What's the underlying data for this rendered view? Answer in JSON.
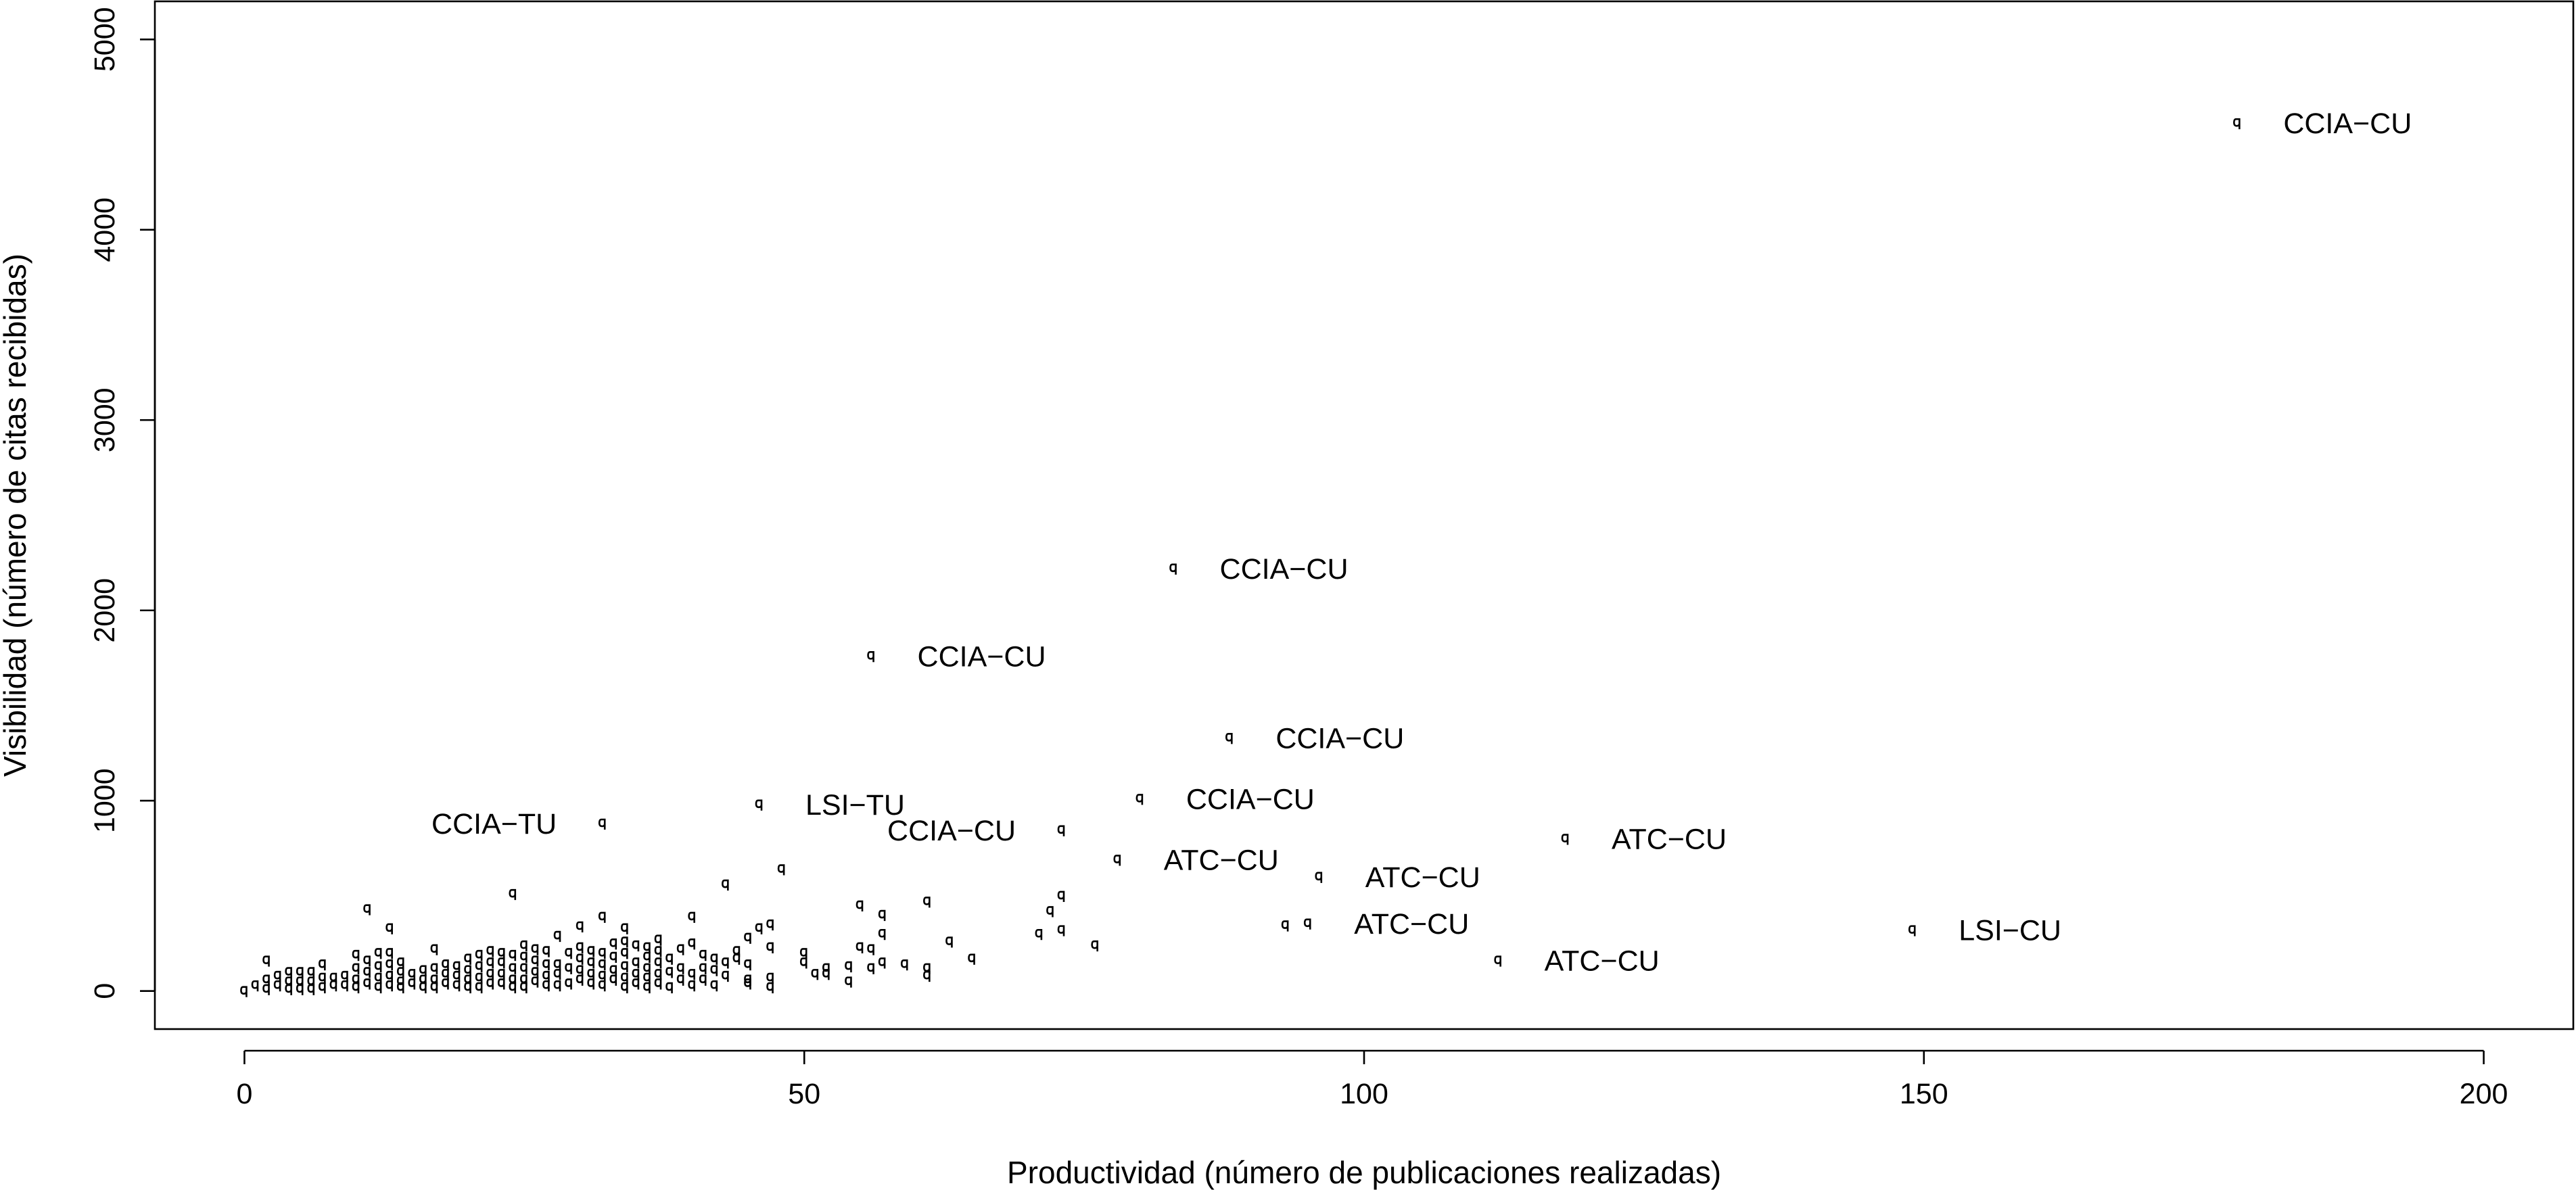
{
  "chart_data": {
    "type": "scatter",
    "xlabel": "Productividad (número de publicaciones realizadas)",
    "ylabel": "Visibilidad (número de citas recibidas)",
    "xlim": [
      -8,
      208
    ],
    "ylim": [
      -200,
      5200
    ],
    "x_ticks": [
      0,
      50,
      100,
      150,
      200
    ],
    "y_ticks": [
      0,
      1000,
      2000,
      3000,
      4000,
      5000
    ],
    "x_tick_labels": [
      "0",
      "50",
      "100",
      "150",
      "200"
    ],
    "y_tick_labels": [
      "0",
      "1000",
      "2000",
      "3000",
      "4000",
      "5000"
    ],
    "grid": false,
    "legend": "none",
    "marker": "q",
    "labeled_points": [
      {
        "x": 178,
        "y": 4560,
        "label": "CCIA−CU",
        "label_side": "right"
      },
      {
        "x": 83,
        "y": 2220,
        "label": "CCIA−CU",
        "label_side": "right"
      },
      {
        "x": 56,
        "y": 1760,
        "label": "CCIA−CU",
        "label_side": "right"
      },
      {
        "x": 88,
        "y": 1330,
        "label": "CCIA−CU",
        "label_side": "right"
      },
      {
        "x": 80,
        "y": 1010,
        "label": "CCIA−CU",
        "label_side": "right"
      },
      {
        "x": 73,
        "y": 845,
        "label": "CCIA−CU",
        "label_side": "left"
      },
      {
        "x": 32,
        "y": 880,
        "label": "CCIA−TU",
        "label_side": "left"
      },
      {
        "x": 46,
        "y": 980,
        "label": "LSI−TU",
        "label_side": "right"
      },
      {
        "x": 78,
        "y": 690,
        "label": "ATC−CU",
        "label_side": "right"
      },
      {
        "x": 96,
        "y": 600,
        "label": "ATC−CU",
        "label_side": "right"
      },
      {
        "x": 118,
        "y": 800,
        "label": "ATC−CU",
        "label_side": "right"
      },
      {
        "x": 95,
        "y": 355,
        "label": "ATC−CU",
        "label_side": "right"
      },
      {
        "x": 112,
        "y": 160,
        "label": "ATC−CU",
        "label_side": "right"
      },
      {
        "x": 149,
        "y": 320,
        "label": "LSI−CU",
        "label_side": "right"
      }
    ],
    "points": [
      [
        93,
        345
      ],
      [
        71,
        300
      ],
      [
        72,
        420
      ],
      [
        73,
        500
      ],
      [
        73,
        320
      ],
      [
        76,
        240
      ],
      [
        61,
        470
      ],
      [
        63,
        260
      ],
      [
        65,
        170
      ],
      [
        61,
        120
      ],
      [
        61,
        80
      ],
      [
        59,
        140
      ],
      [
        57,
        300
      ],
      [
        57,
        400
      ],
      [
        55,
        450
      ],
      [
        56,
        220
      ],
      [
        56,
        120
      ],
      [
        57,
        150
      ],
      [
        55,
        230
      ],
      [
        54,
        50
      ],
      [
        54,
        130
      ],
      [
        52,
        90
      ],
      [
        52,
        120
      ],
      [
        50,
        150
      ],
      [
        50,
        200
      ],
      [
        51,
        90
      ],
      [
        48,
        640
      ],
      [
        47,
        350
      ],
      [
        47,
        230
      ],
      [
        47,
        70
      ],
      [
        47,
        20
      ],
      [
        46,
        330
      ],
      [
        45,
        280
      ],
      [
        45,
        140
      ],
      [
        45,
        60
      ],
      [
        45,
        40
      ],
      [
        44,
        210
      ],
      [
        44,
        170
      ],
      [
        43,
        560
      ],
      [
        43,
        150
      ],
      [
        43,
        80
      ],
      [
        42,
        170
      ],
      [
        42,
        110
      ],
      [
        42,
        30
      ],
      [
        41,
        190
      ],
      [
        41,
        120
      ],
      [
        41,
        60
      ],
      [
        40,
        390
      ],
      [
        40,
        250
      ],
      [
        40,
        90
      ],
      [
        40,
        30
      ],
      [
        39,
        220
      ],
      [
        39,
        120
      ],
      [
        39,
        60
      ],
      [
        38,
        170
      ],
      [
        38,
        100
      ],
      [
        38,
        20
      ],
      [
        37,
        270
      ],
      [
        37,
        210
      ],
      [
        37,
        150
      ],
      [
        37,
        90
      ],
      [
        37,
        40
      ],
      [
        36,
        230
      ],
      [
        36,
        180
      ],
      [
        36,
        120
      ],
      [
        36,
        70
      ],
      [
        36,
        20
      ],
      [
        35,
        240
      ],
      [
        35,
        150
      ],
      [
        35,
        90
      ],
      [
        35,
        40
      ],
      [
        34,
        330
      ],
      [
        34,
        260
      ],
      [
        34,
        200
      ],
      [
        34,
        130
      ],
      [
        34,
        70
      ],
      [
        34,
        20
      ],
      [
        33,
        250
      ],
      [
        33,
        180
      ],
      [
        33,
        110
      ],
      [
        33,
        60
      ],
      [
        32,
        390
      ],
      [
        32,
        200
      ],
      [
        32,
        140
      ],
      [
        32,
        80
      ],
      [
        32,
        30
      ],
      [
        31,
        210
      ],
      [
        31,
        150
      ],
      [
        31,
        90
      ],
      [
        31,
        40
      ],
      [
        30,
        340
      ],
      [
        30,
        230
      ],
      [
        30,
        170
      ],
      [
        30,
        110
      ],
      [
        30,
        60
      ],
      [
        29,
        200
      ],
      [
        29,
        120
      ],
      [
        29,
        40
      ],
      [
        28,
        290
      ],
      [
        28,
        140
      ],
      [
        28,
        90
      ],
      [
        28,
        30
      ],
      [
        27,
        210
      ],
      [
        27,
        140
      ],
      [
        27,
        80
      ],
      [
        27,
        30
      ],
      [
        26,
        220
      ],
      [
        26,
        160
      ],
      [
        26,
        100
      ],
      [
        26,
        50
      ],
      [
        25,
        240
      ],
      [
        25,
        180
      ],
      [
        25,
        120
      ],
      [
        25,
        60
      ],
      [
        25,
        20
      ],
      [
        24,
        510
      ],
      [
        24,
        190
      ],
      [
        24,
        120
      ],
      [
        24,
        60
      ],
      [
        24,
        20
      ],
      [
        23,
        200
      ],
      [
        23,
        150
      ],
      [
        23,
        90
      ],
      [
        23,
        40
      ],
      [
        22,
        210
      ],
      [
        22,
        150
      ],
      [
        22,
        90
      ],
      [
        22,
        40
      ],
      [
        21,
        190
      ],
      [
        21,
        130
      ],
      [
        21,
        70
      ],
      [
        21,
        20
      ],
      [
        20,
        170
      ],
      [
        20,
        110
      ],
      [
        20,
        60
      ],
      [
        20,
        20
      ],
      [
        19,
        130
      ],
      [
        19,
        80
      ],
      [
        19,
        30
      ],
      [
        18,
        140
      ],
      [
        18,
        90
      ],
      [
        18,
        40
      ],
      [
        17,
        220
      ],
      [
        17,
        120
      ],
      [
        17,
        60
      ],
      [
        17,
        20
      ],
      [
        16,
        110
      ],
      [
        16,
        60
      ],
      [
        16,
        20
      ],
      [
        15,
        90
      ],
      [
        15,
        40
      ],
      [
        14,
        150
      ],
      [
        14,
        100
      ],
      [
        14,
        50
      ],
      [
        14,
        20
      ],
      [
        13,
        200
      ],
      [
        13,
        330
      ],
      [
        13,
        140
      ],
      [
        13,
        80
      ],
      [
        13,
        30
      ],
      [
        12,
        200
      ],
      [
        12,
        130
      ],
      [
        12,
        70
      ],
      [
        12,
        20
      ],
      [
        11,
        430
      ],
      [
        11,
        160
      ],
      [
        11,
        100
      ],
      [
        11,
        40
      ],
      [
        10,
        190
      ],
      [
        10,
        120
      ],
      [
        10,
        60
      ],
      [
        10,
        20
      ],
      [
        9,
        80
      ],
      [
        9,
        30
      ],
      [
        8,
        70
      ],
      [
        8,
        30
      ],
      [
        7,
        140
      ],
      [
        7,
        70
      ],
      [
        7,
        20
      ],
      [
        6,
        100
      ],
      [
        6,
        50
      ],
      [
        6,
        10
      ],
      [
        5,
        100
      ],
      [
        5,
        50
      ],
      [
        5,
        10
      ],
      [
        4,
        100
      ],
      [
        4,
        50
      ],
      [
        4,
        10
      ],
      [
        3,
        80
      ],
      [
        3,
        30
      ],
      [
        2,
        160
      ],
      [
        2,
        60
      ],
      [
        2,
        10
      ],
      [
        1,
        30
      ],
      [
        0,
        0
      ]
    ]
  }
}
